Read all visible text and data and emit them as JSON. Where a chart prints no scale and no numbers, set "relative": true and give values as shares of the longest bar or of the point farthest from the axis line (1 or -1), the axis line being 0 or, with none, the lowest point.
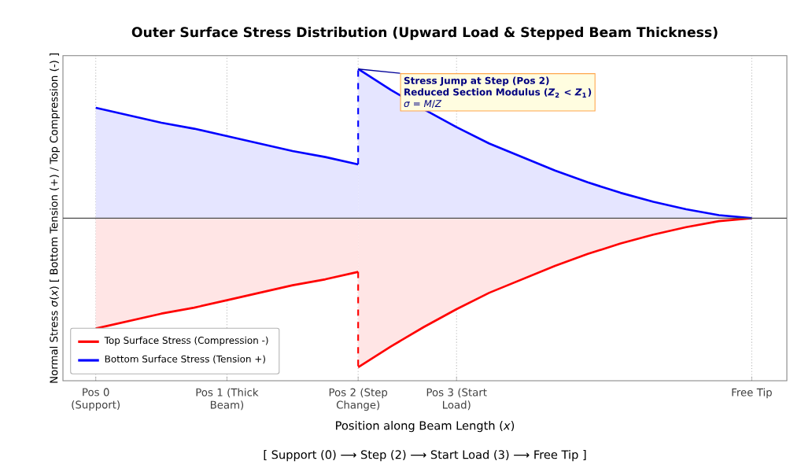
{
  "chart_data": {
    "type": "area",
    "relative": true,
    "title": "Outer Surface Stress Distribution (Upward Load & Stepped Beam Thickness)",
    "xlabel": "Position along Beam Length (*x*)",
    "ylabel": "Normal Stress *σ*(*x*) [ Bottom Tension (+) / Top Compression (-) ]",
    "categories": [
      "Pos 0 (Support)",
      null,
      null,
      null,
      "Pos 1 (Thick Beam)",
      null,
      null,
      null,
      "Pos 2 (Step Change)",
      null,
      null,
      "Pos 3 (Start Load)",
      null,
      null,
      null,
      null,
      null,
      null,
      null,
      null,
      "Free Tip"
    ],
    "grid": "x",
    "legend": "bottom left",
    "series": [
      {
        "name": "Top Surface Stress (Compression -)",
        "color": "#ff0000",
        "values": [
          -0.74,
          -0.69,
          -0.64,
          -0.6,
          -0.55,
          -0.5,
          -0.45,
          -0.41,
          -0.36,
          null,
          null,
          null,
          null,
          null,
          null,
          null,
          null,
          null,
          null,
          null,
          null
        ]
      },
      {
        "color": "#ff0000",
        "values": [
          null,
          null,
          null,
          null,
          null,
          null,
          null,
          null,
          -1.0,
          -0.86,
          -0.73,
          -0.61,
          -0.5,
          -0.41,
          -0.32,
          -0.24,
          -0.17,
          -0.11,
          -0.06,
          -0.02,
          0
        ]
      },
      {
        "name": "Bottom Surface Stress (Tension +)",
        "color": "#0000ff",
        "values": [
          0.74,
          0.69,
          0.64,
          0.6,
          0.55,
          0.5,
          0.45,
          0.41,
          0.36,
          null,
          null,
          null,
          null,
          null,
          null,
          null,
          null,
          null,
          null,
          null,
          null
        ]
      },
      {
        "color": "#0000ff",
        "values": [
          null,
          null,
          null,
          null,
          null,
          null,
          null,
          null,
          1.0,
          0.86,
          0.73,
          0.61,
          0.5,
          0.41,
          0.32,
          0.24,
          0.17,
          0.11,
          0.06,
          0.02,
          0
        ]
      }
    ],
    "annotations": [
      "Stress Jump at Step (Pos 2)",
      "Reduced Section Modulus (*Z*$_{2}$ < *Z*$_{1}$)",
      "*σ* = *M*/*Z*",
      "[ Support (0) ⟶ Step (2) ⟶ Start Load (3) ⟶ Free Tip ]"
    ]
  }
}
